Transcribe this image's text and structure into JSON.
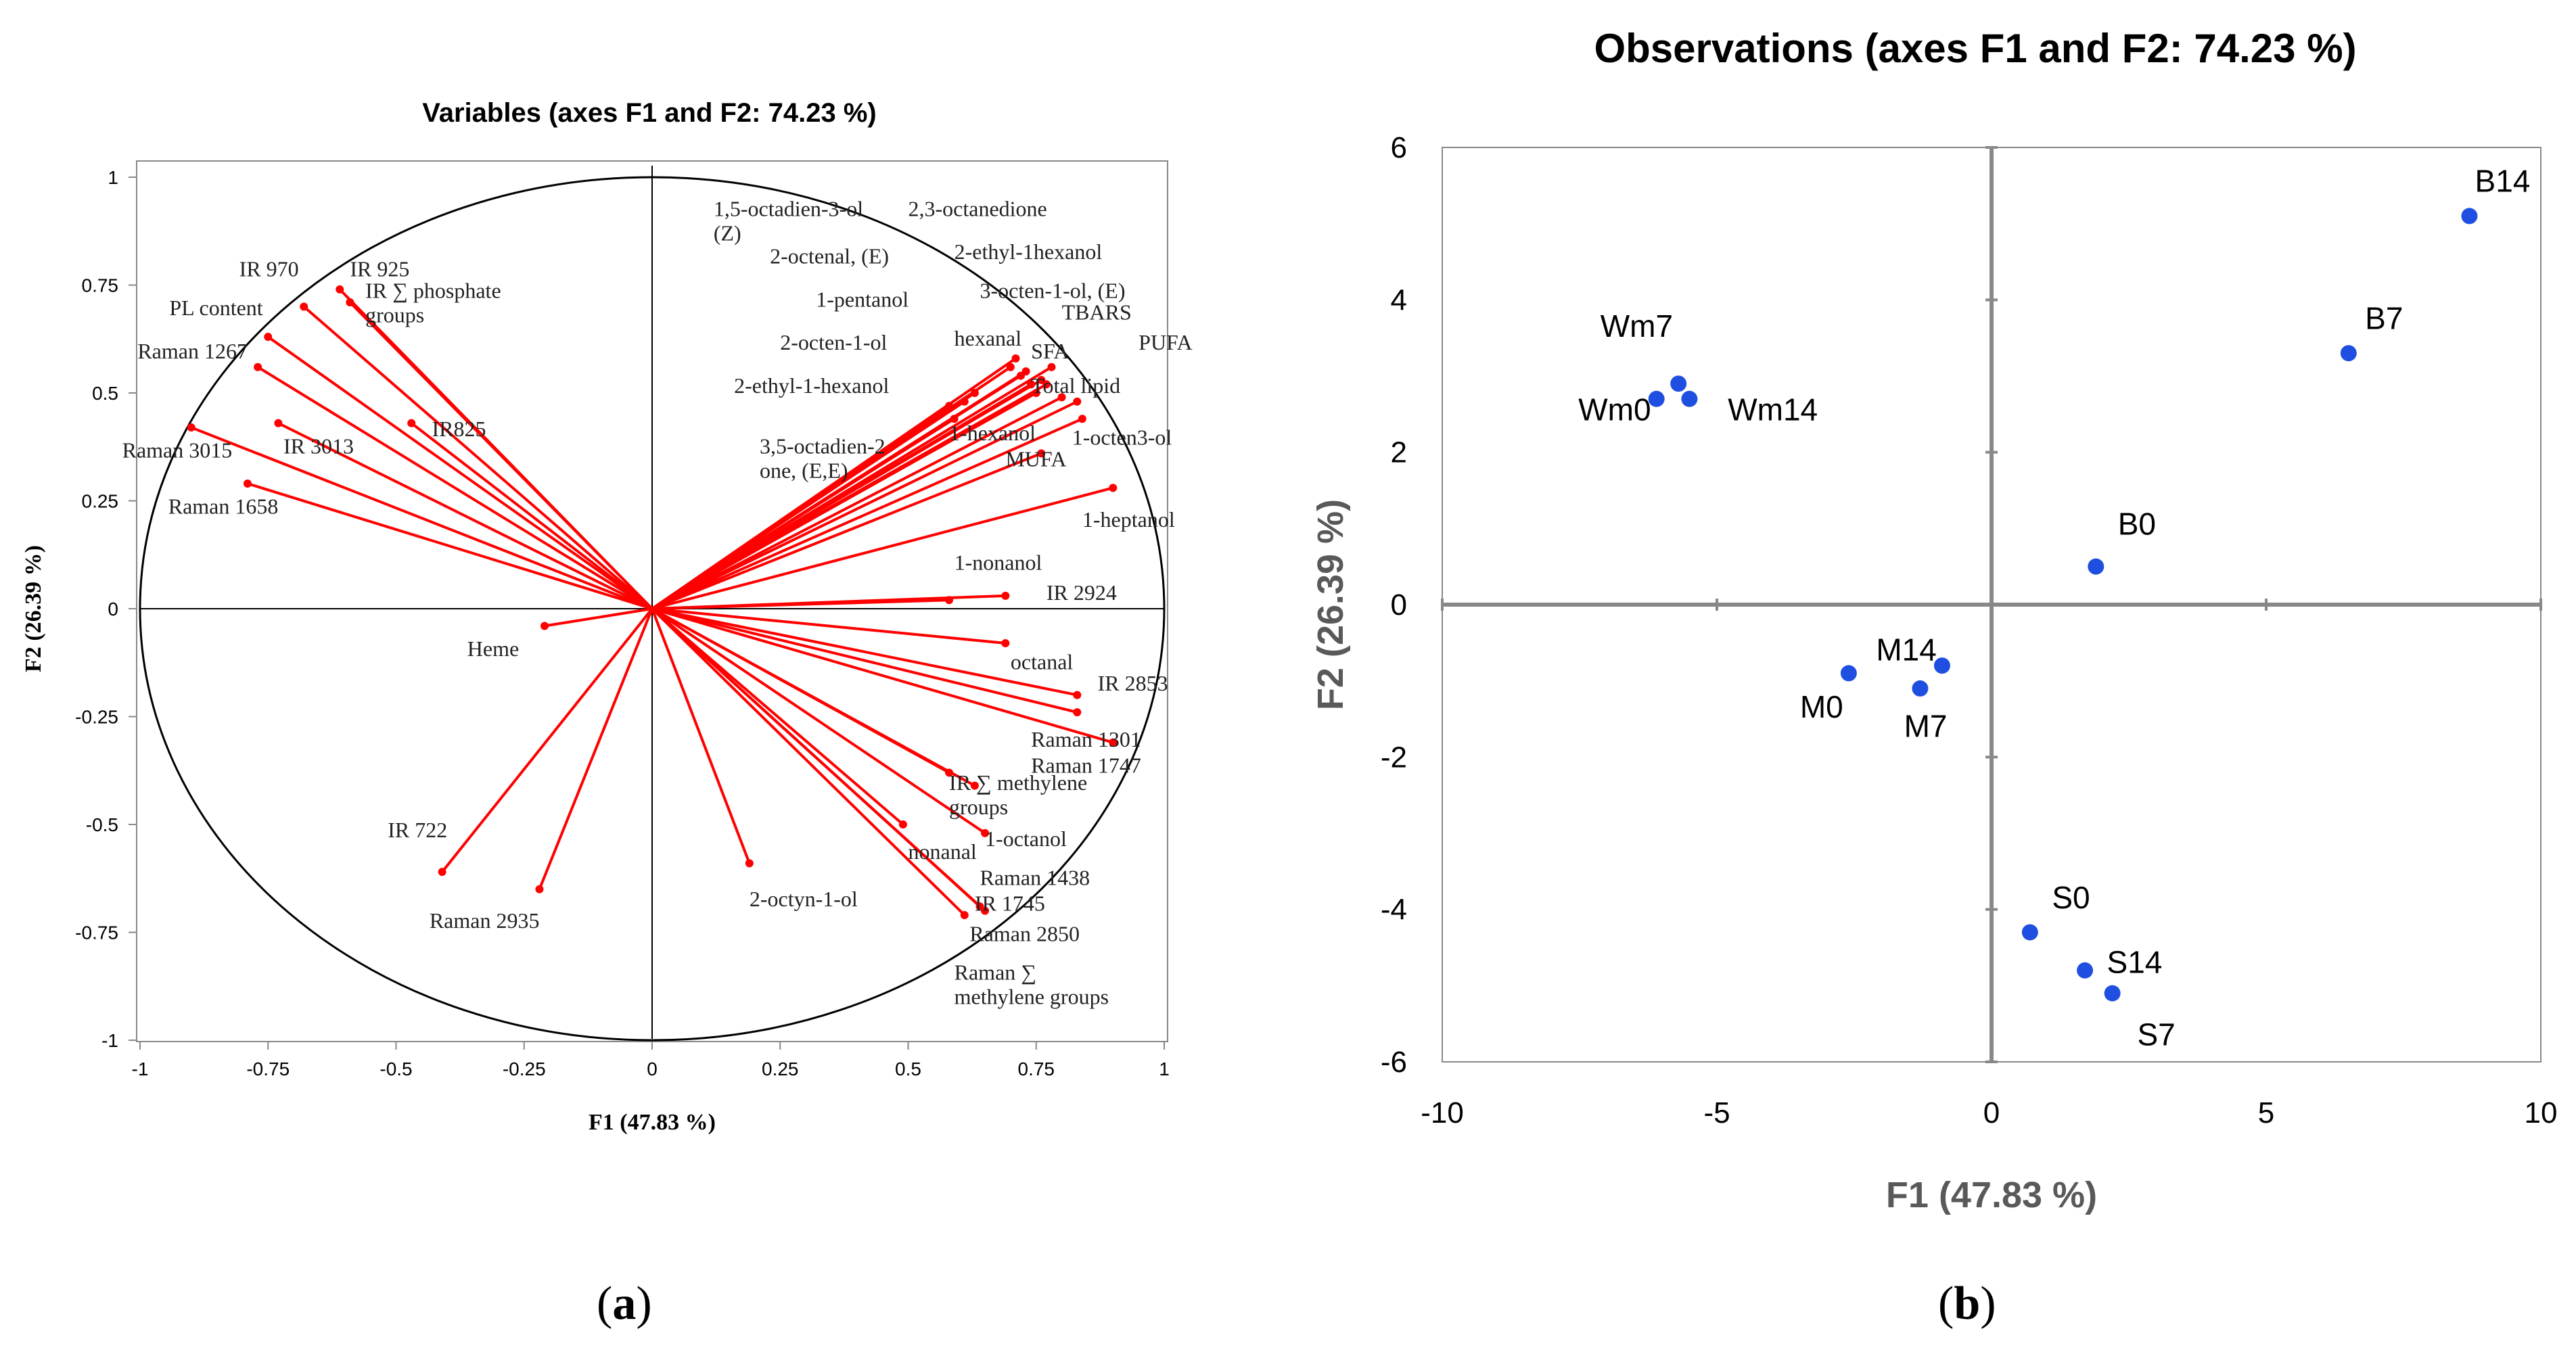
{
  "chart_data": [
    {
      "type": "scatter",
      "subtype": "correlation-circle",
      "title": "Variables (axes F1 and F2: 74.23 %)",
      "xlabel": "F1 (47.83 %)",
      "ylabel": "F2 (26.39 %)",
      "xlim": [
        -1,
        1
      ],
      "ylim": [
        -1,
        1
      ],
      "x_ticks": [
        "-1",
        "-0.75",
        "-0.5",
        "-0.25",
        "0",
        "0.25",
        "0.5",
        "0.75",
        "1"
      ],
      "y_ticks": [
        "1",
        "0.75",
        "0.5",
        "0.25",
        "0",
        "-0.25",
        "-0.5",
        "-0.75",
        "-1"
      ],
      "panel_label": "(a)",
      "panel_letter": "a",
      "color": "#ff0000",
      "vectors": [
        {
          "x": -0.61,
          "y": 0.74,
          "name": "IR 925",
          "lx": -0.59,
          "ly": 0.77,
          "lines": [
            "IR 925"
          ],
          "anchor": "start"
        },
        {
          "x": -0.59,
          "y": 0.71,
          "name": "IR ∑ phosphate groups",
          "lx": -0.56,
          "ly": 0.72,
          "lines": [
            "IR ∑ phosphate",
            "groups"
          ],
          "anchor": "start"
        },
        {
          "x": -0.68,
          "y": 0.7,
          "name": "IR 970",
          "lx": -0.69,
          "ly": 0.77,
          "lines": [
            "IR 970"
          ],
          "anchor": "end"
        },
        {
          "x": -0.75,
          "y": 0.63,
          "name": "PL content",
          "lx": -0.76,
          "ly": 0.68,
          "lines": [
            "PL content"
          ],
          "anchor": "end"
        },
        {
          "x": -0.77,
          "y": 0.56,
          "name": "Raman 1267",
          "lx": -0.79,
          "ly": 0.58,
          "lines": [
            "Raman 1267"
          ],
          "anchor": "end"
        },
        {
          "x": -0.73,
          "y": 0.43,
          "name": "IR 3013",
          "lx": -0.72,
          "ly": 0.36,
          "lines": [
            "IR 3013"
          ],
          "anchor": "start"
        },
        {
          "x": -0.47,
          "y": 0.43,
          "name": "IR825",
          "lx": -0.43,
          "ly": 0.4,
          "lines": [
            "IR825"
          ],
          "anchor": "start"
        },
        {
          "x": -0.9,
          "y": 0.42,
          "name": "Raman 3015",
          "lx": -0.82,
          "ly": 0.35,
          "lines": [
            "Raman 3015"
          ],
          "anchor": "end"
        },
        {
          "x": -0.79,
          "y": 0.29,
          "name": "Raman 1658",
          "lx": -0.73,
          "ly": 0.22,
          "lines": [
            "Raman 1658"
          ],
          "anchor": "end"
        },
        {
          "x": -0.21,
          "y": -0.04,
          "name": "Heme",
          "lx": -0.26,
          "ly": -0.11,
          "lines": [
            "Heme"
          ],
          "anchor": "end"
        },
        {
          "x": -0.41,
          "y": -0.61,
          "name": "IR 722",
          "lx": -0.4,
          "ly": -0.53,
          "lines": [
            "IR 722"
          ],
          "anchor": "end"
        },
        {
          "x": -0.22,
          "y": -0.65,
          "name": "Raman 2935",
          "lx": -0.22,
          "ly": -0.74,
          "lines": [
            "Raman 2935"
          ],
          "anchor": "end"
        },
        {
          "x": 0.19,
          "y": -0.59,
          "name": "2-octyn-1-ol",
          "lx": 0.19,
          "ly": -0.69,
          "lines": [
            "2-octyn-1-ol"
          ],
          "anchor": "start"
        },
        {
          "x": 0.49,
          "y": -0.5,
          "name": "nonanal",
          "lx": 0.5,
          "ly": -0.58,
          "lines": [
            "nonanal"
          ],
          "anchor": "start"
        },
        {
          "x": 0.58,
          "y": -0.38,
          "name": "IR ∑ methylene groups",
          "lx": 0.58,
          "ly": -0.42,
          "lines": [
            "IR ∑ methylene",
            "groups"
          ],
          "anchor": "start"
        },
        {
          "x": 0.63,
          "y": -0.41,
          "name": "1-octanol",
          "lx": 0.65,
          "ly": -0.55,
          "lines": [
            "1-octanol"
          ],
          "anchor": "start"
        },
        {
          "x": 0.65,
          "y": -0.52,
          "name": "Raman 1438",
          "lx": 0.64,
          "ly": -0.64,
          "lines": [
            "Raman 1438"
          ],
          "anchor": "start"
        },
        {
          "x": 0.64,
          "y": -0.69,
          "name": "IR 1745",
          "lx": 0.63,
          "ly": -0.7,
          "lines": [
            "IR 1745"
          ],
          "anchor": "start"
        },
        {
          "x": 0.61,
          "y": -0.71,
          "name": "Raman 2850",
          "lx": 0.62,
          "ly": -0.77,
          "lines": [
            "Raman 2850"
          ],
          "anchor": "start"
        },
        {
          "x": 0.65,
          "y": -0.7,
          "name": "Raman ∑ methylene groups",
          "lx": 0.59,
          "ly": -0.86,
          "lines": [
            "Raman ∑",
            "methylene groups"
          ],
          "anchor": "start"
        },
        {
          "x": 0.83,
          "y": -0.2,
          "name": "Raman 1301",
          "lx": 0.74,
          "ly": -0.32,
          "lines": [
            "Raman 1301"
          ],
          "anchor": "start"
        },
        {
          "x": 0.9,
          "y": -0.31,
          "name": "Raman 1747",
          "lx": 0.74,
          "ly": -0.38,
          "lines": [
            "Raman 1747"
          ],
          "anchor": "start"
        },
        {
          "x": 0.83,
          "y": -0.24,
          "name": "IR 2853",
          "lx": 0.87,
          "ly": -0.19,
          "lines": [
            "IR 2853"
          ],
          "anchor": "start"
        },
        {
          "x": 0.69,
          "y": -0.08,
          "name": "octanal",
          "lx": 0.7,
          "ly": -0.14,
          "lines": [
            "octanal"
          ],
          "anchor": "start"
        },
        {
          "x": 0.69,
          "y": 0.03,
          "name": "IR 2924",
          "lx": 0.77,
          "ly": 0.02,
          "lines": [
            "IR 2924"
          ],
          "anchor": "start"
        },
        {
          "x": 0.58,
          "y": 0.02,
          "name": "1-nonanol",
          "lx": 0.59,
          "ly": 0.09,
          "lines": [
            "1-nonanol"
          ],
          "anchor": "start"
        },
        {
          "x": 0.9,
          "y": 0.28,
          "name": "1-heptanol",
          "lx": 0.84,
          "ly": 0.19,
          "lines": [
            "1-heptanol"
          ],
          "anchor": "start"
        },
        {
          "x": 0.84,
          "y": 0.44,
          "name": "1-octen3-ol",
          "lx": 0.82,
          "ly": 0.38,
          "lines": [
            "1-octen3-ol"
          ],
          "anchor": "start"
        },
        {
          "x": 0.76,
          "y": 0.36,
          "name": "MUFA",
          "lx": 0.69,
          "ly": 0.33,
          "lines": [
            "MUFA"
          ],
          "anchor": "start"
        },
        {
          "x": 0.83,
          "y": 0.48,
          "name": "Total lipid",
          "lx": 0.74,
          "ly": 0.5,
          "lines": [
            "Total lipid"
          ],
          "anchor": "start"
        },
        {
          "x": 0.8,
          "y": 0.49,
          "name": "PUFA",
          "lx": 0.95,
          "ly": 0.6,
          "lines": [
            "PUFA"
          ],
          "anchor": "start"
        },
        {
          "x": 0.77,
          "y": 0.52,
          "name": "SFA",
          "lx": 0.74,
          "ly": 0.58,
          "lines": [
            "SFA"
          ],
          "anchor": "start"
        },
        {
          "x": 0.75,
          "y": 0.5,
          "name": "TBARS",
          "lx": 0.8,
          "ly": 0.67,
          "lines": [
            "TBARS"
          ],
          "anchor": "start"
        },
        {
          "x": 0.73,
          "y": 0.55,
          "name": "hexanal",
          "lx": 0.59,
          "ly": 0.61,
          "lines": [
            "hexanal"
          ],
          "anchor": "start"
        },
        {
          "x": 0.58,
          "y": 0.47,
          "name": "1-hexanol",
          "lx": 0.58,
          "ly": 0.39,
          "lines": [
            "1-hexanol"
          ],
          "anchor": "start"
        },
        {
          "x": 0.63,
          "y": 0.5,
          "name": "2-octen-1-ol",
          "lx": 0.25,
          "ly": 0.6,
          "lines": [
            "2-octen-1-ol"
          ],
          "anchor": "start"
        },
        {
          "x": 0.61,
          "y": 0.48,
          "name": "2-ethyl-1-hexanol",
          "lx": 0.16,
          "ly": 0.5,
          "lines": [
            "2-ethyl-1-hexanol"
          ],
          "anchor": "start"
        },
        {
          "x": 0.74,
          "y": 0.52,
          "name": "1-pentanol",
          "lx": 0.32,
          "ly": 0.7,
          "lines": [
            "1-pentanol"
          ],
          "anchor": "start"
        },
        {
          "x": 0.7,
          "y": 0.56,
          "name": "2-octenal, (E)",
          "lx": 0.23,
          "ly": 0.8,
          "lines": [
            "2-octenal, (E)"
          ],
          "anchor": "start"
        },
        {
          "x": 0.71,
          "y": 0.58,
          "name": "2-ethyl-1hexanol",
          "lx": 0.59,
          "ly": 0.81,
          "lines": [
            "2-ethyl-1hexanol"
          ],
          "anchor": "start"
        },
        {
          "x": 0.72,
          "y": 0.54,
          "name": "3-octen-1-ol, (E)",
          "lx": 0.64,
          "ly": 0.72,
          "lines": [
            "3-octen-1-ol, (E)"
          ],
          "anchor": "start"
        },
        {
          "x": 0.76,
          "y": 0.53,
          "name": "1,5-octadien-3-ol, (Z)",
          "lx": 0.12,
          "ly": 0.91,
          "lines": [
            "1,5-octadien-3-ol",
            "(Z)"
          ],
          "anchor": "start"
        },
        {
          "x": 0.78,
          "y": 0.56,
          "name": "2,3-octanedione",
          "lx": 0.5,
          "ly": 0.91,
          "lines": [
            "2,3-octanedione"
          ],
          "anchor": "start"
        },
        {
          "x": 0.59,
          "y": 0.44,
          "name": "3,5-octadien-2-one, (E,E)",
          "lx": 0.21,
          "ly": 0.36,
          "lines": [
            "3,5-octadien-2",
            "one, (E,E)"
          ],
          "anchor": "start"
        }
      ]
    },
    {
      "type": "scatter",
      "title": "Observations (axes F1 and F2: 74.23 %)",
      "xlabel": "F1 (47.83 %)",
      "ylabel": "F2 (26.39 %)",
      "xlim": [
        -10,
        10
      ],
      "ylim": [
        -6,
        6
      ],
      "x_ticks": [
        "-10",
        "-5",
        "0",
        "5",
        "10"
      ],
      "y_ticks": [
        "6",
        "4",
        "2",
        "0",
        "-2",
        "-4",
        "-6"
      ],
      "panel_label": "(b)",
      "panel_letter": "b",
      "color": "#1f4fe0",
      "points": [
        {
          "label": "B14",
          "x": 8.7,
          "y": 5.1,
          "dx": 0.1,
          "dy": 0.45,
          "anchor": "start"
        },
        {
          "label": "B7",
          "x": 6.5,
          "y": 3.3,
          "dx": 0.3,
          "dy": 0.45,
          "anchor": "start"
        },
        {
          "label": "B0",
          "x": 1.9,
          "y": 0.5,
          "dx": 0.4,
          "dy": 0.55,
          "anchor": "start"
        },
        {
          "label": "Wm7",
          "x": -5.7,
          "y": 2.9,
          "dx": -0.1,
          "dy": 0.75,
          "anchor": "end"
        },
        {
          "label": "Wm0",
          "x": -6.1,
          "y": 2.7,
          "dx": -0.1,
          "dy": -0.15,
          "anchor": "end"
        },
        {
          "label": "Wm14",
          "x": -5.5,
          "y": 2.7,
          "dx": 0.7,
          "dy": -0.15,
          "anchor": "start"
        },
        {
          "label": "M14",
          "x": -0.9,
          "y": -0.8,
          "dx": -0.1,
          "dy": 0.2,
          "anchor": "end"
        },
        {
          "label": "M0",
          "x": -2.6,
          "y": -0.9,
          "dx": -0.1,
          "dy": -0.45,
          "anchor": "end"
        },
        {
          "label": "M7",
          "x": -1.3,
          "y": -1.1,
          "dx": 0.1,
          "dy": -0.5,
          "anchor": "middle"
        },
        {
          "label": "S0",
          "x": 0.7,
          "y": -4.3,
          "dx": 0.4,
          "dy": 0.45,
          "anchor": "start"
        },
        {
          "label": "S14",
          "x": 1.7,
          "y": -4.8,
          "dx": 0.4,
          "dy": 0.1,
          "anchor": "start"
        },
        {
          "label": "S7",
          "x": 2.2,
          "y": -5.1,
          "dx": 0.8,
          "dy": -0.55,
          "anchor": "middle"
        }
      ]
    }
  ]
}
